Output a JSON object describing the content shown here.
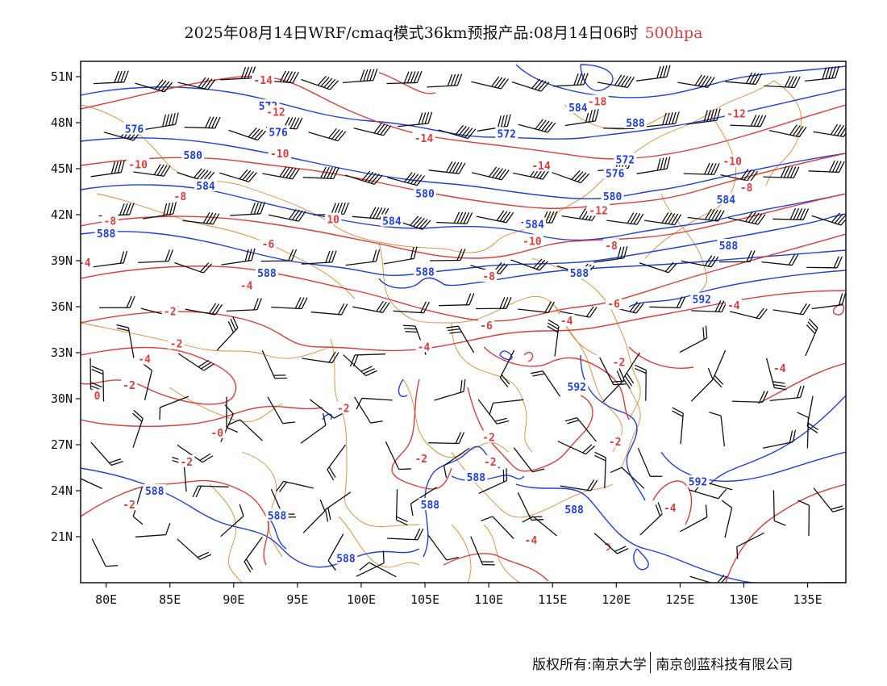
{
  "header": {
    "title_main": "2025年08月14日WRF/cmaq模式36km预报产品:08月14日06时",
    "title_level": "500hpa"
  },
  "footer": {
    "copyright": "版权所有:南京大学",
    "company": "南京创蓝科技有限公司"
  },
  "colors": {
    "height_contour": "#1f3fe0",
    "temp_contour": "#e03c3c",
    "border": "#e08a30",
    "wind": "#111111"
  },
  "map": {
    "lon_labels": [
      "80E",
      "85E",
      "90E",
      "95E",
      "100E",
      "105E",
      "110E",
      "115E",
      "120E",
      "125E",
      "130E",
      "135E"
    ],
    "lon_values": [
      80,
      85,
      90,
      95,
      100,
      105,
      110,
      115,
      120,
      125,
      130,
      135
    ],
    "lat_labels": [
      "51N",
      "48N",
      "45N",
      "42N",
      "39N",
      "36N",
      "33N",
      "30N",
      "27N",
      "24N",
      "21N"
    ],
    "lat_values": [
      51,
      48,
      45,
      42,
      39,
      36,
      33,
      30,
      27,
      24,
      21
    ],
    "lon_range": [
      78,
      138
    ],
    "lat_range": [
      18,
      52
    ],
    "height_labels": [
      {
        "text": "572",
        "lon": 92.7,
        "lat": 49.1
      },
      {
        "text": "576",
        "lon": 82.2,
        "lat": 47.6
      },
      {
        "text": "576",
        "lon": 93.5,
        "lat": 47.4
      },
      {
        "text": "580",
        "lon": 86.8,
        "lat": 45.9
      },
      {
        "text": "584",
        "lon": 87.8,
        "lat": 43.9
      },
      {
        "text": "588",
        "lon": 80.0,
        "lat": 40.8
      },
      {
        "text": "572",
        "lon": 111.4,
        "lat": 47.3
      },
      {
        "text": "580",
        "lon": 105.0,
        "lat": 43.4
      },
      {
        "text": "584",
        "lon": 102.4,
        "lat": 41.6
      },
      {
        "text": "584",
        "lon": 113.6,
        "lat": 41.4
      },
      {
        "text": "588",
        "lon": 92.6,
        "lat": 38.2
      },
      {
        "text": "588",
        "lon": 105.0,
        "lat": 38.3
      },
      {
        "text": "588",
        "lon": 117.1,
        "lat": 38.2
      },
      {
        "text": "584",
        "lon": 117.0,
        "lat": 49.0
      },
      {
        "text": "588",
        "lon": 121.5,
        "lat": 48.0
      },
      {
        "text": "572",
        "lon": 120.7,
        "lat": 45.6
      },
      {
        "text": "576",
        "lon": 119.9,
        "lat": 44.7
      },
      {
        "text": "580",
        "lon": 119.7,
        "lat": 43.2
      },
      {
        "text": "584",
        "lon": 128.6,
        "lat": 43.0
      },
      {
        "text": "588",
        "lon": 128.8,
        "lat": 40.0
      },
      {
        "text": "592",
        "lon": 126.7,
        "lat": 36.5
      },
      {
        "text": "592",
        "lon": 116.9,
        "lat": 30.8
      },
      {
        "text": "588",
        "lon": 109.0,
        "lat": 24.9
      },
      {
        "text": "588",
        "lon": 105.4,
        "lat": 23.1
      },
      {
        "text": "588",
        "lon": 116.7,
        "lat": 22.8
      },
      {
        "text": "588",
        "lon": 83.8,
        "lat": 24.0
      },
      {
        "text": "588",
        "lon": 93.4,
        "lat": 22.4
      },
      {
        "text": "588",
        "lon": 98.8,
        "lat": 19.6
      },
      {
        "text": "592",
        "lon": 126.4,
        "lat": 24.6
      }
    ],
    "temp_labels": [
      {
        "text": "-14",
        "lon": 92.3,
        "lat": 50.8
      },
      {
        "text": "-12",
        "lon": 93.3,
        "lat": 48.7
      },
      {
        "text": "-10",
        "lon": 93.6,
        "lat": 46.0
      },
      {
        "text": "-10",
        "lon": 82.5,
        "lat": 45.3
      },
      {
        "text": "-8",
        "lon": 85.8,
        "lat": 43.2
      },
      {
        "text": "-8",
        "lon": 80.3,
        "lat": 41.6
      },
      {
        "text": "-6",
        "lon": 92.7,
        "lat": 40.1
      },
      {
        "text": "-4",
        "lon": 78.3,
        "lat": 38.9
      },
      {
        "text": "-4",
        "lon": 91.0,
        "lat": 37.4
      },
      {
        "text": "-2",
        "lon": 85.0,
        "lat": 35.7
      },
      {
        "text": "-2",
        "lon": 85.5,
        "lat": 33.6
      },
      {
        "text": "-4",
        "lon": 83.0,
        "lat": 32.6
      },
      {
        "text": "-2",
        "lon": 81.8,
        "lat": 30.9
      },
      {
        "text": "0",
        "lon": 79.3,
        "lat": 30.2
      },
      {
        "text": "-2",
        "lon": 98.6,
        "lat": 29.4
      },
      {
        "text": "-0",
        "lon": 88.7,
        "lat": 27.8
      },
      {
        "text": "-2",
        "lon": 86.3,
        "lat": 25.9
      },
      {
        "text": "-2",
        "lon": 81.8,
        "lat": 23.1
      },
      {
        "text": "-14",
        "lon": 104.9,
        "lat": 47.0
      },
      {
        "text": "-14",
        "lon": 114.1,
        "lat": 45.2
      },
      {
        "text": "-12",
        "lon": 118.6,
        "lat": 42.3
      },
      {
        "text": "-10",
        "lon": 113.4,
        "lat": 40.3
      },
      {
        "text": "10",
        "lon": 97.8,
        "lat": 41.7
      },
      {
        "text": "-8",
        "lon": 119.6,
        "lat": 40.0
      },
      {
        "text": "-8",
        "lon": 110.0,
        "lat": 38.0
      },
      {
        "text": "-6",
        "lon": 119.8,
        "lat": 36.2
      },
      {
        "text": "-6",
        "lon": 109.8,
        "lat": 34.8
      },
      {
        "text": "-4",
        "lon": 104.9,
        "lat": 33.4
      },
      {
        "text": "-4",
        "lon": 116.1,
        "lat": 35.1
      },
      {
        "text": "-2",
        "lon": 120.2,
        "lat": 32.4
      },
      {
        "text": "-2",
        "lon": 110.0,
        "lat": 27.5
      },
      {
        "text": "-2",
        "lon": 110.1,
        "lat": 25.9
      },
      {
        "text": "-2",
        "lon": 104.7,
        "lat": 26.1
      },
      {
        "text": "-2",
        "lon": 119.9,
        "lat": 27.2
      },
      {
        "text": "-18",
        "lon": 118.5,
        "lat": 49.4
      },
      {
        "text": "-12",
        "lon": 129.4,
        "lat": 48.6
      },
      {
        "text": "-10",
        "lon": 129.1,
        "lat": 45.5
      },
      {
        "text": "-8",
        "lon": 130.2,
        "lat": 43.8
      },
      {
        "text": "-4",
        "lon": 129.2,
        "lat": 36.1
      },
      {
        "text": "-4",
        "lon": 132.8,
        "lat": 32.0
      },
      {
        "text": "-4",
        "lon": 124.2,
        "lat": 22.9
      },
      {
        "text": "-4",
        "lon": 113.3,
        "lat": 20.8
      }
    ]
  }
}
